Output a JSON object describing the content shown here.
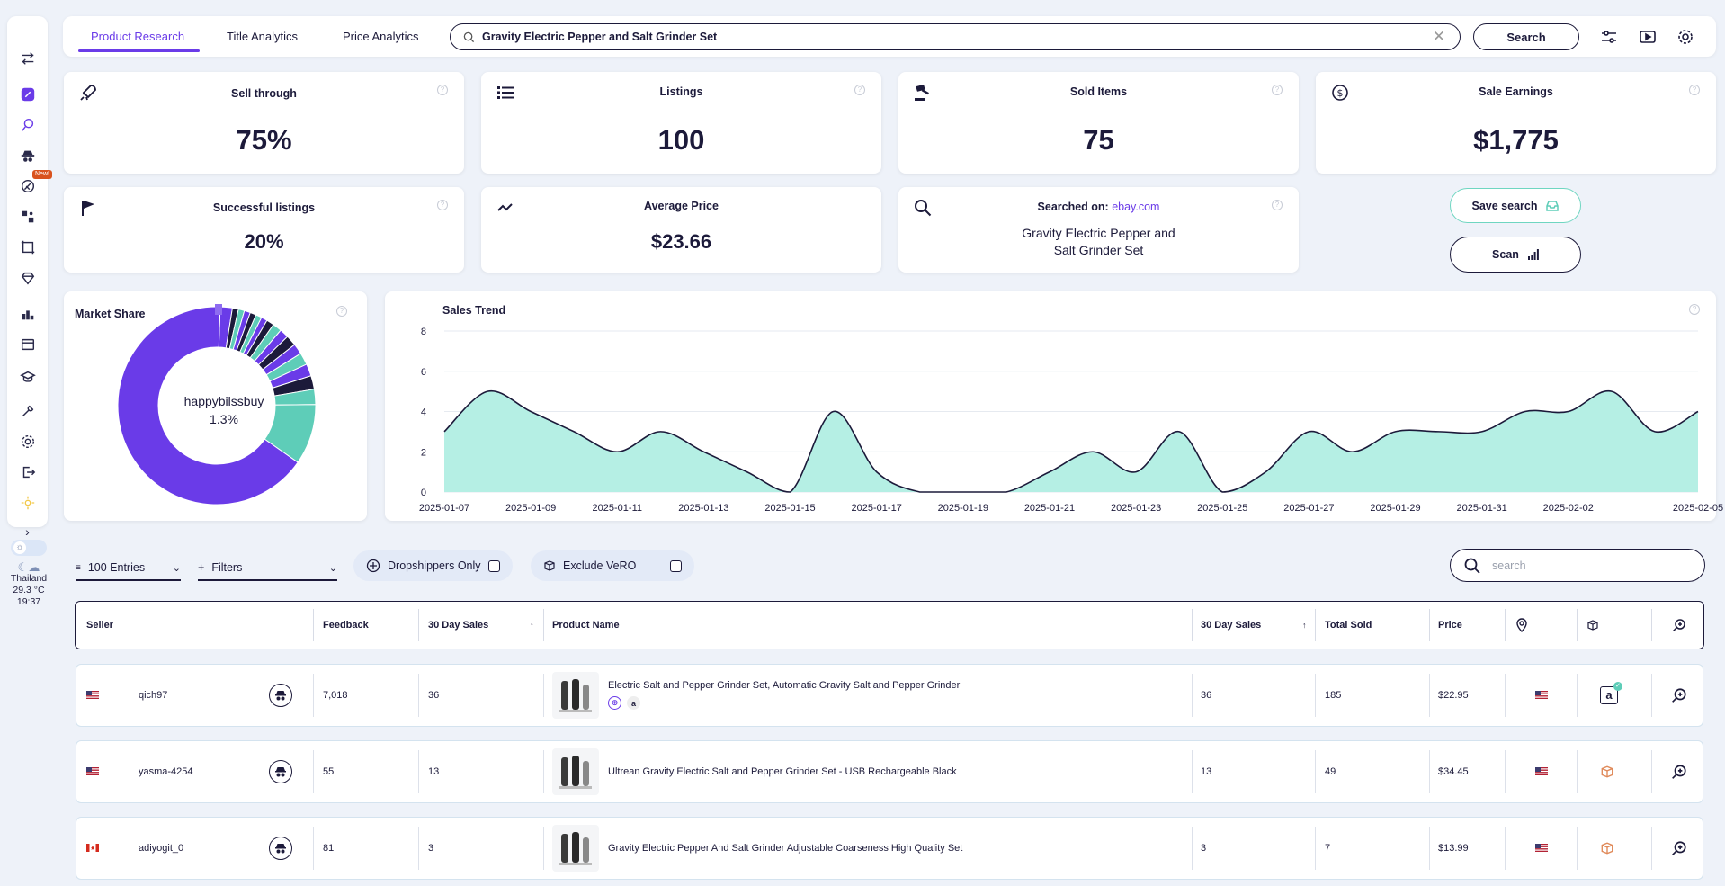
{
  "tabs": [
    {
      "label": "Product Research"
    },
    {
      "label": "Title Analytics"
    },
    {
      "label": "Price Analytics"
    }
  ],
  "search": {
    "value": "Gravity Electric Pepper and Salt Grinder Set",
    "button_label": "Search"
  },
  "sidebar": {
    "new_badge": "New!"
  },
  "weather": {
    "location": "Thailand",
    "temperature": "29.3 °C",
    "time": "19:37"
  },
  "stats": {
    "sell_through": {
      "title": "Sell through",
      "value": "75%"
    },
    "listings": {
      "title": "Listings",
      "value": "100"
    },
    "sold_items": {
      "title": "Sold Items",
      "value": "75"
    },
    "sale_earnings": {
      "title": "Sale Earnings",
      "value": "$1,775"
    },
    "successful_listings": {
      "title": "Successful listings",
      "value": "20%"
    },
    "average_price": {
      "title": "Average Price",
      "value": "$23.66"
    },
    "searched_on": {
      "label": "Searched on:",
      "site": "ebay.com",
      "term_line1": "Gravity Electric Pepper and",
      "term_line2": "Salt Grinder Set"
    }
  },
  "actions": {
    "save_search": "Save search",
    "scan": "Scan"
  },
  "market_share": {
    "title": "Market Share",
    "center_seller": "happybilssbuy",
    "center_percent": "1.3%",
    "colors": {
      "purple": "#6a3be8",
      "teal": "#5ecdb8",
      "navy": "#1c1a3a"
    }
  },
  "chart_data": {
    "type": "area",
    "title": "Sales Trend",
    "x": [
      "2025-01-07",
      "2025-01-08",
      "2025-01-09",
      "2025-01-10",
      "2025-01-11",
      "2025-01-12",
      "2025-01-13",
      "2025-01-14",
      "2025-01-15",
      "2025-01-16",
      "2025-01-17",
      "2025-01-18",
      "2025-01-19",
      "2025-01-20",
      "2025-01-21",
      "2025-01-22",
      "2025-01-23",
      "2025-01-24",
      "2025-01-25",
      "2025-01-26",
      "2025-01-27",
      "2025-01-28",
      "2025-01-29",
      "2025-01-30",
      "2025-01-31",
      "2025-02-01",
      "2025-02-02",
      "2025-02-03",
      "2025-02-04",
      "2025-02-05"
    ],
    "values": [
      3,
      5,
      4,
      3,
      2,
      3,
      2,
      1,
      0,
      4,
      1,
      0,
      0,
      0,
      1,
      2,
      1,
      3,
      0,
      1,
      3,
      2,
      3,
      3,
      3,
      4,
      4,
      5,
      3,
      4
    ],
    "x_tick_labels": [
      "2025-01-07",
      "2025-01-09",
      "2025-01-11",
      "2025-01-13",
      "2025-01-15",
      "2025-01-17",
      "2025-01-19",
      "2025-01-21",
      "2025-01-23",
      "2025-01-25",
      "2025-01-27",
      "2025-01-29",
      "2025-01-31",
      "2025-02-02",
      "2025-02-05"
    ],
    "y_ticks": [
      "0",
      "2",
      "4",
      "6",
      "8"
    ],
    "ylim": [
      0,
      8
    ],
    "fill_color": "#b5efe4",
    "line_color": "#1c1a3a"
  },
  "controls": {
    "entries": "100 Entries",
    "filters": "Filters",
    "dropshippers": "Dropshippers Only",
    "exclude_vero": "Exclude VeRO",
    "search_placeholder": "search"
  },
  "table": {
    "headers": {
      "seller": "Seller",
      "feedback": "Feedback",
      "sales30": "30 Day Sales",
      "product": "Product Name",
      "sales30b": "30 Day Sales",
      "total_sold": "Total Sold",
      "price": "Price"
    },
    "rows": [
      {
        "seller": "qich97",
        "feedback": "7,018",
        "sales30": "36",
        "product": "Electric Salt and Pepper Grinder Set, Automatic Gravity Salt and Pepper Grinder",
        "sales30b": "36",
        "total_sold": "185",
        "price": "$22.95",
        "flag": "us",
        "shipping": "amazon"
      },
      {
        "seller": "yasma-4254",
        "feedback": "55",
        "sales30": "13",
        "product": "Ultrean Gravity Electric Salt and Pepper Grinder Set - USB Rechargeable Black",
        "sales30b": "13",
        "total_sold": "49",
        "price": "$34.45",
        "flag": "us",
        "shipping": "box"
      },
      {
        "seller": "adiyogit_0",
        "feedback": "81",
        "sales30": "3",
        "product": "Gravity Electric Pepper And Salt Grinder Adjustable Coarseness High Quality Set",
        "sales30b": "3",
        "total_sold": "7",
        "price": "$13.99",
        "flag": "ca",
        "shipping": "box"
      }
    ]
  }
}
